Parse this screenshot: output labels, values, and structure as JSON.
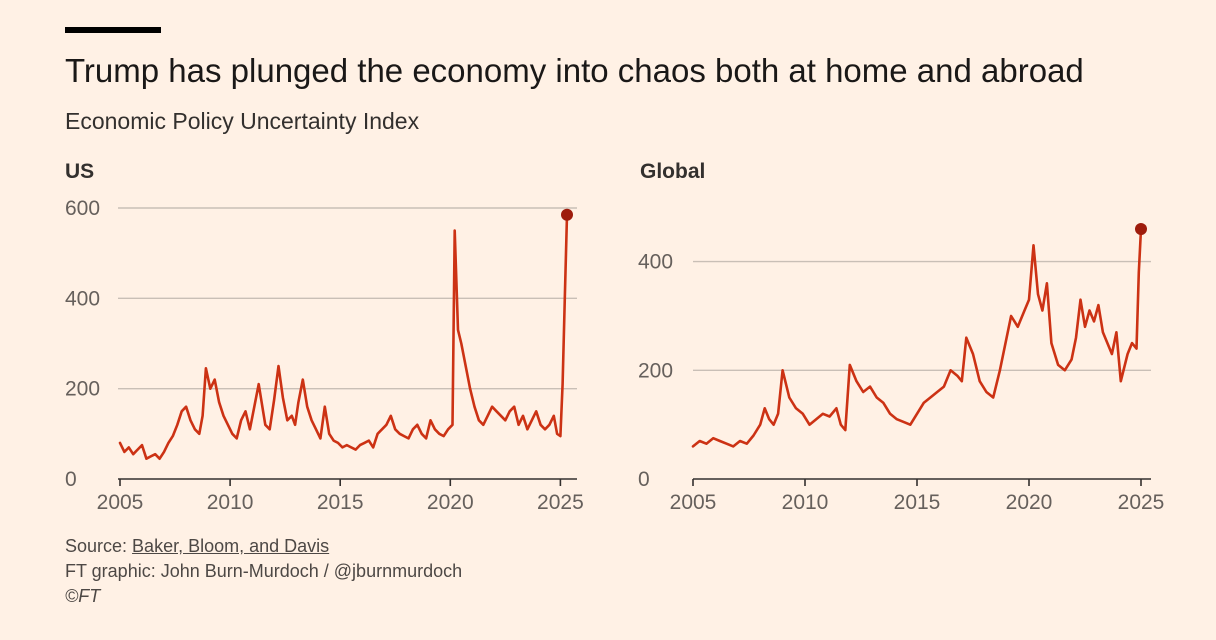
{
  "header": {
    "title": "Trump has plunged the economy into chaos both at home and abroad",
    "subtitle": "Economic Policy Uncertainty Index"
  },
  "footer": {
    "source_prefix": "Source: ",
    "source_link": "Baker, Bloom, and Davis",
    "credit": "FT graphic: John Burn-Murdoch / @jburnmurdoch",
    "copyright": "©FT"
  },
  "colors": {
    "background": "#fff1e5",
    "series": "#cc3214",
    "endpoint": "#9e1c0c",
    "grid": "#c9bfb6"
  },
  "chart_data": [
    {
      "type": "line",
      "title": "US",
      "xlabel": "",
      "ylabel": "",
      "xlim": [
        2005,
        2025.3
      ],
      "ylim": [
        0,
        600
      ],
      "xticks": [
        2005,
        2010,
        2015,
        2020,
        2025
      ],
      "yticks": [
        0,
        200,
        400,
        600
      ],
      "grid": true,
      "highlight_last_point": true,
      "series": [
        {
          "x": [
            2005.0,
            2005.2,
            2005.4,
            2005.6,
            2005.8,
            2006.0,
            2006.2,
            2006.4,
            2006.6,
            2006.8,
            2007.0,
            2007.2,
            2007.4,
            2007.6,
            2007.8,
            2008.0,
            2008.2,
            2008.4,
            2008.6,
            2008.75,
            2008.9,
            2009.1,
            2009.3,
            2009.5,
            2009.7,
            2009.9,
            2010.1,
            2010.3,
            2010.5,
            2010.7,
            2010.9,
            2011.1,
            2011.3,
            2011.5,
            2011.6,
            2011.8,
            2012.0,
            2012.2,
            2012.4,
            2012.6,
            2012.8,
            2012.95,
            2013.1,
            2013.3,
            2013.5,
            2013.7,
            2013.9,
            2014.1,
            2014.3,
            2014.5,
            2014.7,
            2014.9,
            2015.1,
            2015.3,
            2015.5,
            2015.7,
            2015.9,
            2016.1,
            2016.3,
            2016.5,
            2016.7,
            2016.9,
            2017.1,
            2017.3,
            2017.5,
            2017.7,
            2017.9,
            2018.1,
            2018.3,
            2018.5,
            2018.7,
            2018.9,
            2019.1,
            2019.3,
            2019.5,
            2019.7,
            2019.9,
            2020.1,
            2020.2,
            2020.35,
            2020.5,
            2020.7,
            2020.9,
            2021.1,
            2021.3,
            2021.5,
            2021.7,
            2021.9,
            2022.1,
            2022.3,
            2022.5,
            2022.7,
            2022.9,
            2023.1,
            2023.3,
            2023.5,
            2023.7,
            2023.9,
            2024.1,
            2024.3,
            2024.5,
            2024.7,
            2024.85,
            2025.0,
            2025.1,
            2025.2,
            2025.3
          ],
          "y": [
            80,
            60,
            70,
            55,
            65,
            75,
            45,
            50,
            55,
            45,
            60,
            80,
            95,
            120,
            150,
            160,
            130,
            110,
            100,
            140,
            245,
            200,
            220,
            170,
            140,
            120,
            100,
            90,
            130,
            150,
            110,
            160,
            210,
            150,
            120,
            110,
            175,
            250,
            180,
            130,
            140,
            120,
            170,
            220,
            160,
            130,
            110,
            90,
            160,
            100,
            85,
            80,
            70,
            75,
            70,
            65,
            75,
            80,
            85,
            70,
            100,
            110,
            120,
            140,
            110,
            100,
            95,
            90,
            110,
            120,
            100,
            90,
            130,
            110,
            100,
            95,
            110,
            120,
            550,
            330,
            300,
            250,
            200,
            160,
            130,
            120,
            140,
            160,
            150,
            140,
            130,
            150,
            160,
            120,
            140,
            110,
            130,
            150,
            120,
            110,
            120,
            140,
            100,
            95,
            210,
            400,
            585
          ]
        }
      ]
    },
    {
      "type": "line",
      "title": "Global",
      "xlabel": "",
      "ylabel": "",
      "xlim": [
        2005,
        2025
      ],
      "ylim": [
        0,
        460
      ],
      "xticks": [
        2005,
        2010,
        2015,
        2020,
        2025
      ],
      "yticks": [
        0,
        200,
        400
      ],
      "grid": true,
      "highlight_last_point": true,
      "series": [
        {
          "x": [
            2005.0,
            2005.3,
            2005.6,
            2005.9,
            2006.2,
            2006.5,
            2006.8,
            2007.1,
            2007.4,
            2007.7,
            2008.0,
            2008.2,
            2008.4,
            2008.6,
            2008.8,
            2009.0,
            2009.3,
            2009.6,
            2009.9,
            2010.2,
            2010.5,
            2010.8,
            2011.1,
            2011.4,
            2011.6,
            2011.8,
            2012.0,
            2012.3,
            2012.6,
            2012.9,
            2013.2,
            2013.5,
            2013.8,
            2014.1,
            2014.4,
            2014.7,
            2015.0,
            2015.3,
            2015.6,
            2015.9,
            2016.2,
            2016.5,
            2016.8,
            2017.0,
            2017.2,
            2017.5,
            2017.8,
            2018.1,
            2018.4,
            2018.7,
            2019.0,
            2019.2,
            2019.5,
            2019.8,
            2020.0,
            2020.2,
            2020.4,
            2020.6,
            2020.8,
            2021.0,
            2021.3,
            2021.6,
            2021.9,
            2022.1,
            2022.3,
            2022.5,
            2022.7,
            2022.9,
            2023.1,
            2023.3,
            2023.5,
            2023.7,
            2023.9,
            2024.1,
            2024.4,
            2024.6,
            2024.8,
            2024.9,
            2025.0
          ],
          "y": [
            60,
            70,
            65,
            75,
            70,
            65,
            60,
            70,
            65,
            80,
            100,
            130,
            110,
            100,
            120,
            200,
            150,
            130,
            120,
            100,
            110,
            120,
            115,
            130,
            100,
            90,
            210,
            180,
            160,
            170,
            150,
            140,
            120,
            110,
            105,
            100,
            120,
            140,
            150,
            160,
            170,
            200,
            190,
            180,
            260,
            230,
            180,
            160,
            150,
            200,
            260,
            300,
            280,
            310,
            330,
            430,
            340,
            310,
            360,
            250,
            210,
            200,
            220,
            260,
            330,
            280,
            310,
            290,
            320,
            270,
            250,
            230,
            270,
            180,
            230,
            250,
            240,
            380,
            460
          ]
        }
      ]
    }
  ]
}
